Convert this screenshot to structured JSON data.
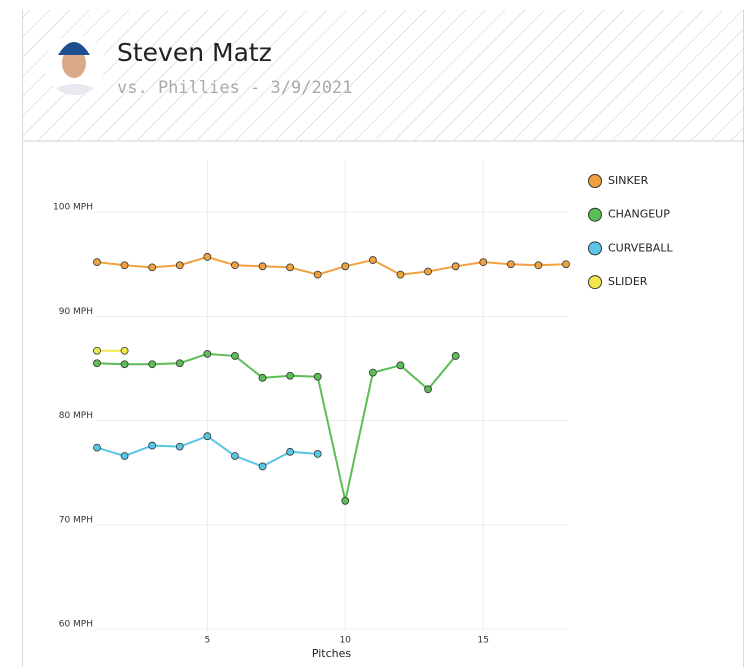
{
  "header": {
    "name": "Steven Matz",
    "subtitle": "vs. Phillies - 3/9/2021"
  },
  "chart_data": {
    "type": "line",
    "x_label": "Pitches",
    "x": [
      1,
      2,
      3,
      4,
      5,
      6,
      7,
      8,
      9,
      10,
      11,
      12,
      13,
      14,
      15,
      16,
      17,
      18
    ],
    "xlim": [
      1,
      18
    ],
    "xticks": [
      5,
      10,
      15
    ],
    "ylim": [
      60,
      105
    ],
    "yticks": [
      {
        "value": 60,
        "label": "60 MPH"
      },
      {
        "value": 70,
        "label": "70 MPH"
      },
      {
        "value": 80,
        "label": "80 MPH"
      },
      {
        "value": 90,
        "label": "90 MPH"
      },
      {
        "value": 100,
        "label": "100 MPH"
      }
    ],
    "grid": true,
    "series": [
      {
        "name": "SINKER",
        "color": "#f0a23f",
        "values": [
          95.2,
          94.9,
          94.7,
          94.9,
          95.7,
          94.9,
          94.8,
          94.7,
          94.0,
          94.8,
          95.4,
          94.0,
          94.3,
          94.8,
          95.2,
          95.0,
          94.9,
          95.0
        ]
      },
      {
        "name": "CHANGEUP",
        "color": "#5dbd57",
        "values": [
          85.5,
          85.4,
          85.4,
          85.5,
          86.4,
          86.2,
          84.1,
          84.3,
          84.2,
          72.3,
          84.6,
          85.3,
          83.0,
          86.2,
          null,
          null,
          null,
          null
        ]
      },
      {
        "name": "CURVEBALL",
        "color": "#5ac6e6",
        "values": [
          77.4,
          76.6,
          77.6,
          77.5,
          78.5,
          76.6,
          75.6,
          77.0,
          76.8,
          null,
          null,
          null,
          null,
          null,
          null,
          null,
          null,
          null
        ]
      },
      {
        "name": "SLIDER",
        "color": "#f2e84b",
        "values": [
          86.7,
          86.7,
          null,
          null,
          null,
          null,
          null,
          null,
          null,
          null,
          null,
          null,
          null,
          null,
          null,
          null,
          null,
          null
        ]
      }
    ]
  }
}
